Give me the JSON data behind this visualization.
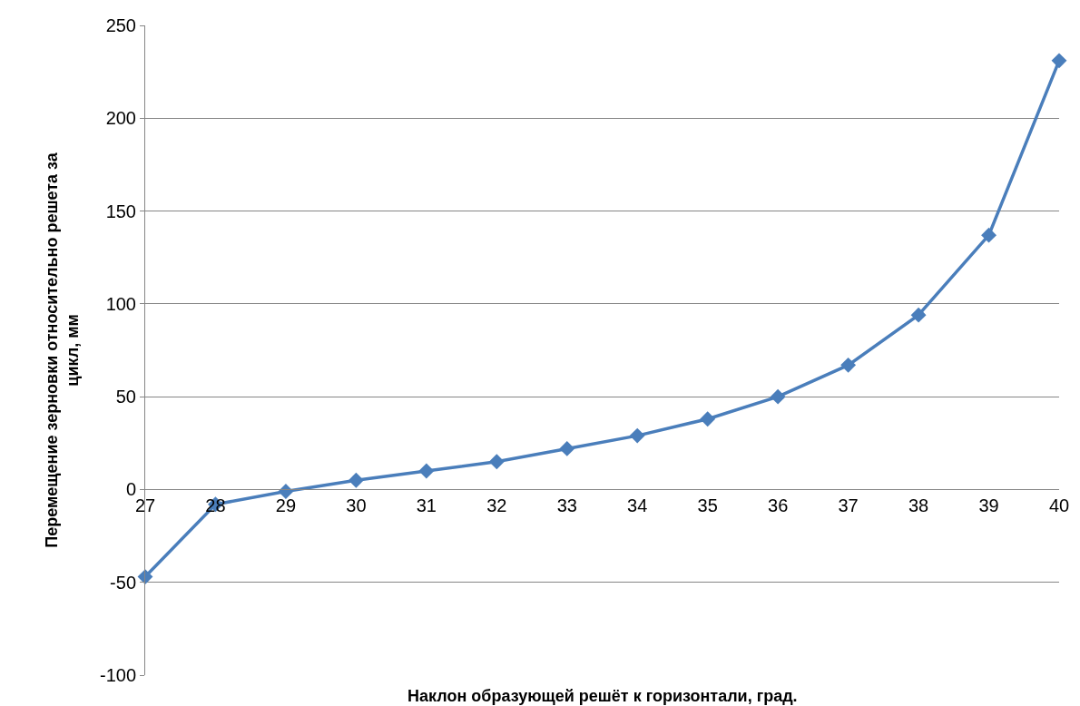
{
  "chart_data": {
    "type": "line",
    "xlabel": "Наклон образующей решёт к горизонтали, град.",
    "ylabel": "Перемещение зерновки относительно решета за цикл, мм",
    "x": [
      27,
      28,
      29,
      30,
      31,
      32,
      33,
      34,
      35,
      36,
      37,
      38,
      39,
      40
    ],
    "series": [
      {
        "color": "#4a7ebb",
        "values": [
          -47,
          -8,
          -1,
          5,
          10,
          15,
          22,
          29,
          38,
          50,
          67,
          94,
          137,
          231
        ]
      }
    ],
    "xlim": [
      27,
      40
    ],
    "xticks": [
      27,
      28,
      29,
      30,
      31,
      32,
      33,
      34,
      35,
      36,
      37,
      38,
      39,
      40
    ],
    "ylim": [
      -100,
      250
    ],
    "yticks": [
      -100,
      -50,
      0,
      50,
      100,
      150,
      200,
      250
    ],
    "grid": "y",
    "marker": "diamond",
    "line_style": "solid"
  }
}
